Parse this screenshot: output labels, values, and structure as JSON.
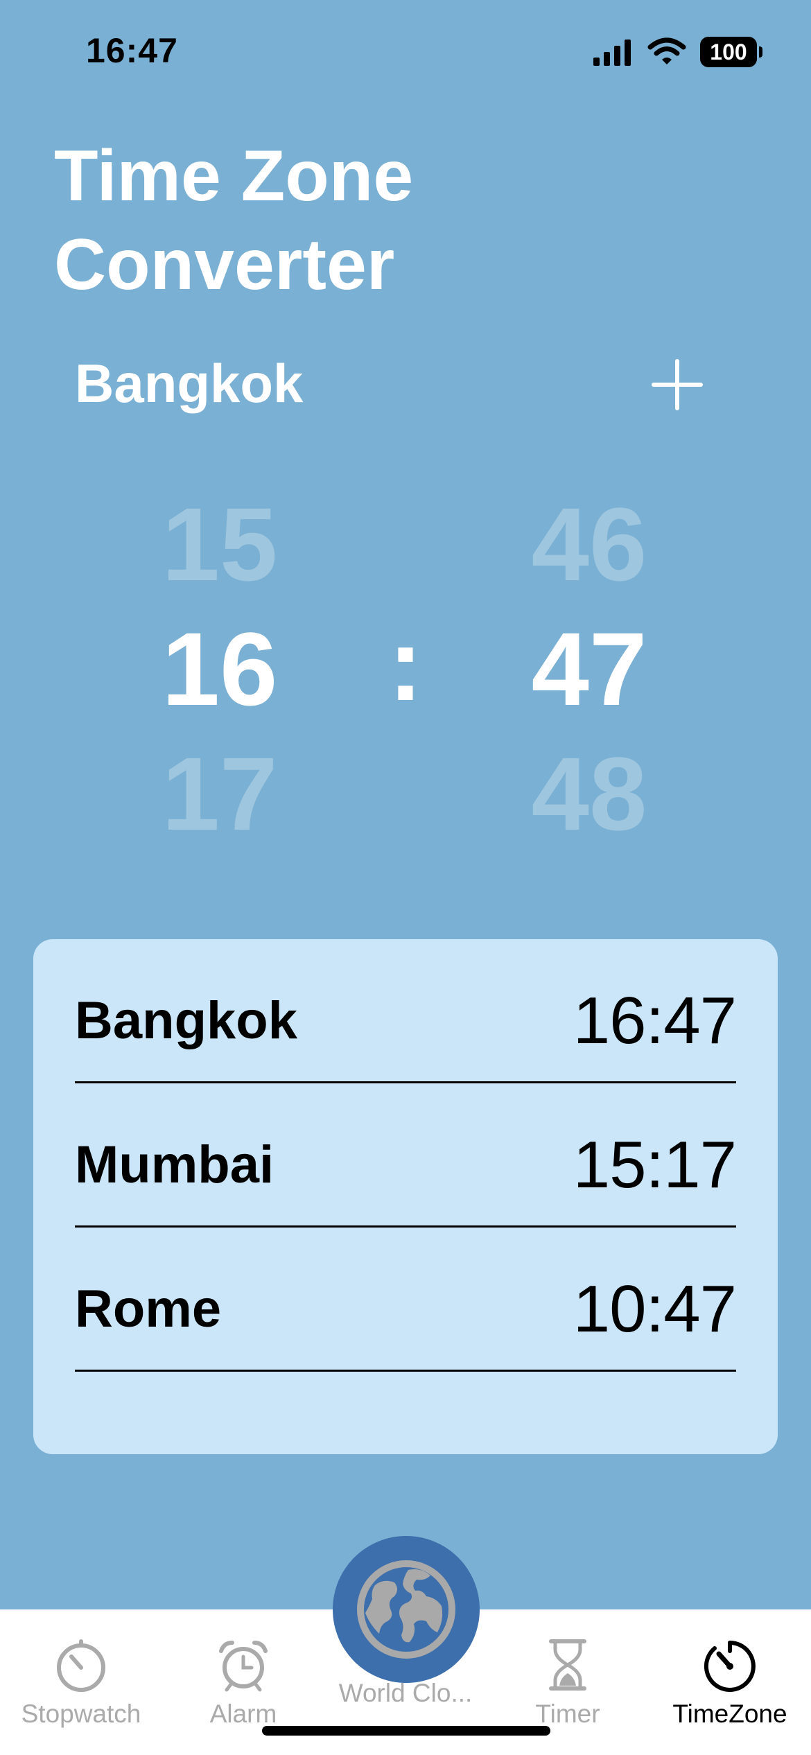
{
  "status_bar": {
    "time": "16:47",
    "battery": "100",
    "icons": [
      "cellular-signal-icon",
      "wifi-icon",
      "battery-icon"
    ]
  },
  "header": {
    "title_line1": "Time Zone",
    "title_line2": "Converter"
  },
  "selected_city": "Bangkok",
  "add_icon": "plus-icon",
  "picker": {
    "hours": {
      "prev": "15",
      "current": "16",
      "next": "17"
    },
    "separator": ":",
    "minutes": {
      "prev": "46",
      "current": "47",
      "next": "48"
    }
  },
  "cities": [
    {
      "name": "Bangkok",
      "time": "16:47"
    },
    {
      "name": "Mumbai",
      "time": "15:17"
    },
    {
      "name": "Rome",
      "time": "10:47"
    }
  ],
  "tabs": [
    {
      "label": "Stopwatch",
      "icon": "stopwatch-icon",
      "active": false
    },
    {
      "label": "Alarm",
      "icon": "alarm-clock-icon",
      "active": false
    },
    {
      "label": "World Clo...",
      "icon": "globe-icon",
      "active": false
    },
    {
      "label": "Timer",
      "icon": "hourglass-icon",
      "active": false
    },
    {
      "label": "TimeZone",
      "icon": "timezone-dial-icon",
      "active": true
    }
  ],
  "colors": {
    "background": "#7AB0D3",
    "card": "#CBE6F8",
    "center_button": "#3C6FAC",
    "tab_inactive": "#AAAAAA",
    "tab_active": "#000000"
  }
}
